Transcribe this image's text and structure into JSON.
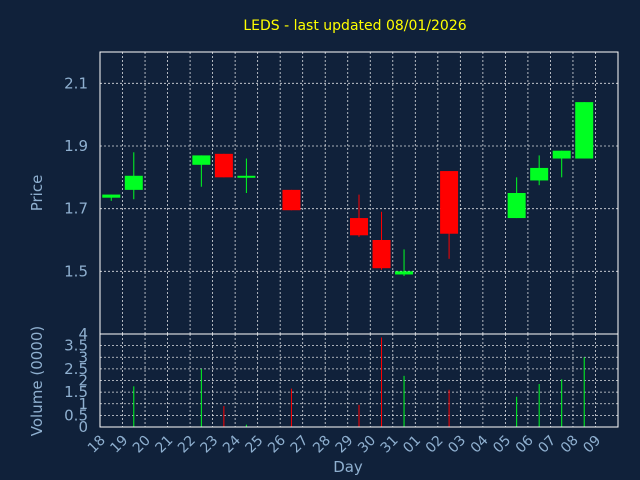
{
  "chart_data": {
    "type": "candlestick",
    "title": "LEDS - last updated 08/01/2026",
    "xlabel": "Day",
    "colors": {
      "background": "#10213a",
      "up": "#00ff22",
      "down": "#ff0000",
      "title": "#ffff00",
      "axis_text": "#8fb0d0",
      "grid": "#ffffff"
    },
    "categories": [
      "18",
      "19",
      "20",
      "21",
      "22",
      "23",
      "24",
      "25",
      "26",
      "27",
      "28",
      "29",
      "30",
      "31",
      "01",
      "02",
      "03",
      "04",
      "05",
      "06",
      "07",
      "08",
      "09"
    ],
    "price_panel": {
      "ylabel": "Price",
      "ylim": [
        1.3,
        2.2
      ],
      "yticks": [
        1.5,
        1.7,
        1.9,
        2.1
      ],
      "ytick_labels": [
        "1.5",
        "1.7",
        "1.9",
        "2.1"
      ],
      "grid": true
    },
    "volume_panel": {
      "ylabel": "Volume (0000)",
      "ylim": [
        0,
        4
      ],
      "yticks": [
        0,
        0.5,
        1,
        1.5,
        2,
        2.5,
        3,
        3.5,
        4
      ],
      "ytick_labels": [
        "0",
        "0.5",
        "1",
        "1.5",
        "2",
        "2.5",
        "3",
        "3.5",
        "4"
      ],
      "grid": true
    },
    "candles": [
      {
        "day": "18",
        "open": 1.735,
        "high": 1.745,
        "low": 1.725,
        "close": 1.745,
        "volume": 0.0
      },
      {
        "day": "19",
        "open": 1.76,
        "high": 1.88,
        "low": 1.73,
        "close": 1.805,
        "volume": 1.75
      },
      {
        "day": "22",
        "open": 1.84,
        "high": 1.87,
        "low": 1.77,
        "close": 1.87,
        "volume": 2.5
      },
      {
        "day": "23",
        "open": 1.875,
        "high": 1.875,
        "low": 1.8,
        "close": 1.8,
        "volume": 0.9
      },
      {
        "day": "24",
        "open": 1.8,
        "high": 1.86,
        "low": 1.75,
        "close": 1.805,
        "volume": 0.1
      },
      {
        "day": "26",
        "open": 1.76,
        "high": 1.76,
        "low": 1.695,
        "close": 1.695,
        "volume": 1.65
      },
      {
        "day": "29",
        "open": 1.67,
        "high": 1.745,
        "low": 1.61,
        "close": 1.615,
        "volume": 0.95
      },
      {
        "day": "30",
        "open": 1.6,
        "high": 1.69,
        "low": 1.505,
        "close": 1.51,
        "volume": 3.85
      },
      {
        "day": "31",
        "open": 1.49,
        "high": 1.57,
        "low": 1.485,
        "close": 1.5,
        "volume": 2.2
      },
      {
        "day": "02",
        "open": 1.82,
        "high": 1.82,
        "low": 1.54,
        "close": 1.62,
        "volume": 1.6
      },
      {
        "day": "05",
        "open": 1.67,
        "high": 1.8,
        "low": 1.67,
        "close": 1.75,
        "volume": 1.3
      },
      {
        "day": "06",
        "open": 1.79,
        "high": 1.87,
        "low": 1.775,
        "close": 1.83,
        "volume": 1.85
      },
      {
        "day": "07",
        "open": 1.86,
        "high": 1.885,
        "low": 1.8,
        "close": 1.885,
        "volume": 2.05
      },
      {
        "day": "08",
        "open": 1.86,
        "high": 2.04,
        "low": 1.86,
        "close": 2.04,
        "volume": 3.0
      }
    ]
  }
}
